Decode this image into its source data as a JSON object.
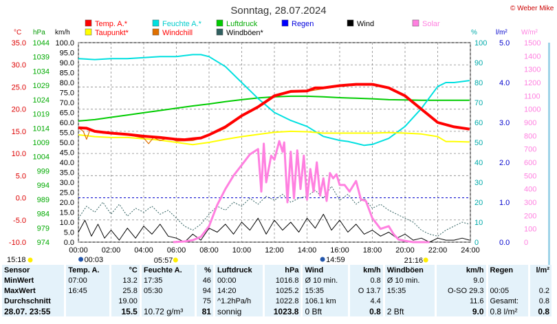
{
  "title": "Sonntag, 28.07.2024",
  "copyright": "© Weber Mike",
  "colors": {
    "temp": "#ff0000",
    "humidity": "#00e0e0",
    "pressure": "#00cc00",
    "rain": "#0000ff",
    "wind": "#000000",
    "solar": "#ff80e0",
    "dewpoint": "#ffff00",
    "windchill": "#e07000",
    "gust": "#306060",
    "pressure_axis": "#00aa00",
    "humidity_axis": "#00a0a0",
    "grid": "#888888",
    "table_bg": "#e4f2fa"
  },
  "axis_units": {
    "temp": "°C",
    "pressure": "hPa",
    "wind": "km/h",
    "humidity": "%",
    "rain": "l/m²",
    "solar": "W/m²"
  },
  "chart_data": {
    "type": "line",
    "x_ticks": [
      "00:00",
      "02:00",
      "04:00",
      "06:00",
      "08:00",
      "10:00",
      "12:00",
      "14:00",
      "16:00",
      "18:00",
      "20:00",
      "22:00",
      "24:00"
    ],
    "xlim": [
      0,
      24
    ],
    "axes": {
      "temp": {
        "ylim": [
          -10,
          35
        ],
        "ticks": [
          "35.0",
          "30.0",
          "25.0",
          "20.0",
          "15.0",
          "10.0",
          "5.0",
          "0.0",
          "-5.0",
          "-10.0"
        ]
      },
      "pressure": {
        "ylim": [
          974,
          1044
        ],
        "ticks": [
          "1044",
          "1039",
          "1034",
          "1029",
          "1024",
          "1019",
          "1014",
          "1009",
          "1004",
          "999",
          "994",
          "989",
          "984",
          "979",
          "974"
        ]
      },
      "wind": {
        "ylim": [
          0,
          100
        ],
        "ticks": [
          "100.0",
          "95.0",
          "90.0",
          "85.0",
          "80.0",
          "75.0",
          "70.0",
          "65.0",
          "60.0",
          "55.0",
          "50.0",
          "45.0",
          "40.0",
          "35.0",
          "30.0",
          "25.0",
          "20.0",
          "15.0",
          "10.0",
          "5.0",
          "0.0"
        ]
      },
      "humidity": {
        "ylim": [
          0,
          100
        ],
        "ticks": [
          "100",
          "90",
          "80",
          "70",
          "60",
          "50",
          "40",
          "30",
          "20",
          "10",
          "0"
        ]
      },
      "rain": {
        "ylim": [
          0,
          5
        ],
        "ticks": [
          "5.0",
          "4.0",
          "3.0",
          "2.0",
          "1.0",
          "0.0"
        ]
      },
      "solar": {
        "ylim": [
          0,
          1500
        ],
        "ticks": [
          "1500",
          "1400",
          "1300",
          "1200",
          "1100",
          "1000",
          "900",
          "800",
          "700",
          "600",
          "500",
          "400",
          "300",
          "200",
          "100",
          "0"
        ]
      }
    },
    "legend": [
      {
        "label": "Temp. A.*",
        "color": "#ff0000"
      },
      {
        "label": "Feuchte A.*",
        "color": "#00e0e0"
      },
      {
        "label": "Luftdruck",
        "color": "#00cc00"
      },
      {
        "label": "Regen",
        "color": "#0000ff"
      },
      {
        "label": "Wind",
        "color": "#000000"
      },
      {
        "label": "Solar",
        "color": "#ff80e0"
      },
      {
        "label": "Taupunkt*",
        "color": "#ffff00"
      },
      {
        "label": "Windchill",
        "color": "#e07000"
      },
      {
        "label": "Windböen*",
        "color": "#306060"
      }
    ],
    "series": [
      {
        "name": "Temp. A.*",
        "axis": "temp",
        "x": [
          0,
          0.5,
          1,
          1.5,
          2,
          3,
          4,
          5,
          6,
          6.5,
          7,
          7.5,
          8,
          9,
          10,
          11,
          12,
          13,
          14,
          14.5,
          15,
          16,
          17,
          18,
          19,
          20,
          21,
          22,
          23,
          23.95
        ],
        "y": [
          15.8,
          15.7,
          15,
          14.8,
          14.6,
          14.3,
          13.9,
          13.6,
          13.2,
          13.1,
          13.3,
          13.5,
          14.2,
          16,
          18.5,
          20.5,
          23,
          24,
          24.1,
          24.8,
          24.8,
          25.3,
          25.6,
          25.6,
          24.8,
          23,
          20,
          17,
          16,
          15.5
        ]
      },
      {
        "name": "Feuchte A.*",
        "axis": "humidity",
        "x": [
          0,
          1,
          2,
          3,
          4,
          5,
          6,
          7,
          7.5,
          8,
          9,
          10,
          11,
          12,
          13,
          14,
          15,
          16,
          16.5,
          17,
          17.5,
          18,
          19,
          20,
          21,
          22,
          22.5,
          23,
          23.95
        ],
        "y": [
          92,
          91.5,
          92,
          92,
          92.5,
          93,
          93,
          94,
          94,
          93,
          88,
          80,
          72,
          65,
          61,
          58,
          53,
          51,
          50.5,
          49.5,
          48.5,
          49,
          52,
          58,
          67,
          78,
          80,
          80,
          81
        ]
      },
      {
        "name": "Luftdruck",
        "axis": "pressure",
        "x": [
          0,
          1,
          2,
          3,
          4,
          5,
          6,
          7,
          8,
          9,
          10,
          11,
          12,
          13,
          14,
          15,
          16,
          17,
          18,
          19,
          20,
          21,
          22,
          23,
          23.95
        ],
        "y": [
          1016.5,
          1017,
          1017.8,
          1018.6,
          1019.4,
          1020.2,
          1021,
          1021.8,
          1022.5,
          1023.3,
          1024,
          1024.6,
          1025,
          1025.2,
          1025.2,
          1025,
          1024.7,
          1024.5,
          1024.3,
          1024,
          1023.9,
          1023.8,
          1023.8,
          1023.8,
          1023.8
        ]
      },
      {
        "name": "Taupunkt*",
        "axis": "temp",
        "x": [
          0,
          1,
          2,
          3,
          4,
          5,
          6,
          7,
          8,
          9,
          10,
          11,
          12,
          13,
          14,
          15,
          16,
          17,
          18,
          19,
          20,
          21,
          22,
          22.5,
          23,
          23.95
        ],
        "y": [
          14.2,
          13.8,
          13.6,
          13.6,
          13.3,
          13,
          12.5,
          12,
          12.5,
          13.2,
          13.8,
          14.3,
          14.8,
          15,
          14.9,
          14.6,
          14.6,
          14.6,
          14.6,
          14.7,
          14.6,
          14.4,
          13.8,
          12.7,
          12.7,
          12.6
        ]
      },
      {
        "name": "Windchill",
        "axis": "temp",
        "x": [
          0,
          0.3,
          0.5,
          0.7,
          1,
          1.5,
          2,
          3,
          4,
          4.3,
          4.6,
          5,
          5.5,
          6,
          7,
          8,
          9,
          10,
          11,
          12,
          13,
          14,
          15,
          16,
          17,
          18,
          19,
          20,
          21,
          22,
          23,
          23.95
        ],
        "y": [
          15.8,
          15,
          13.2,
          15.2,
          14.8,
          14.6,
          14.5,
          14.2,
          13.5,
          12.2,
          13.6,
          12.9,
          13.5,
          12.8,
          12.9,
          14,
          15.7,
          18.3,
          20.3,
          22.8,
          23.8,
          24,
          24.6,
          25.1,
          25.4,
          25.4,
          24.6,
          22.8,
          19.8,
          16.8,
          15.9,
          15.4
        ]
      },
      {
        "name": "Wind",
        "axis": "wind",
        "x": [
          0,
          0.4,
          0.8,
          1.2,
          1.6,
          2,
          2.5,
          3,
          3.5,
          4,
          4.5,
          5,
          5.5,
          6,
          6.5,
          7,
          7.5,
          8,
          8.5,
          9,
          9.5,
          10,
          10.5,
          11,
          11.5,
          12,
          12.5,
          13,
          13.5,
          14,
          14.5,
          15,
          15.5,
          16,
          16.5,
          17,
          17.5,
          18,
          18.5,
          19,
          19.5,
          20,
          20.5,
          21,
          21.5,
          22,
          22.5,
          23,
          23.5,
          23.95
        ],
        "y": [
          5,
          11,
          3,
          9,
          2,
          6,
          1,
          7,
          2,
          8,
          4,
          9,
          3,
          2,
          0,
          4,
          1,
          7,
          5,
          9,
          4,
          10,
          6,
          12,
          4,
          11,
          6,
          10,
          5,
          12,
          7,
          14,
          6,
          11,
          5,
          9,
          4,
          6,
          3,
          5,
          2,
          4,
          1,
          2,
          0,
          2,
          1,
          1,
          2,
          1
        ]
      },
      {
        "name": "Windböen*",
        "axis": "wind",
        "x": [
          0,
          0.5,
          1,
          1.5,
          2,
          2.5,
          3,
          3.5,
          4,
          4.5,
          5,
          5.5,
          6,
          6.5,
          7,
          7.5,
          8,
          8.5,
          9,
          9.5,
          10,
          10.5,
          11,
          11.5,
          12,
          12.5,
          13,
          13.5,
          14,
          14.5,
          15,
          15.5,
          16,
          16.5,
          17,
          17.5,
          18,
          18.5,
          19,
          19.5,
          20,
          20.5,
          21,
          21.5,
          22,
          22.5,
          23,
          23.5,
          23.95
        ],
        "y": [
          12,
          18,
          15,
          20,
          14,
          19,
          13,
          17,
          15,
          18,
          14,
          16,
          12,
          8,
          6,
          9,
          14,
          18,
          16,
          20,
          18,
          22,
          19,
          23,
          21,
          24,
          20,
          22,
          23,
          26,
          22,
          28,
          21,
          24,
          19,
          22,
          17,
          19,
          16,
          14,
          12,
          10,
          6,
          4,
          3,
          6,
          8,
          10,
          9
        ]
      },
      {
        "name": "Solar",
        "axis": "solar",
        "x": [
          5.8,
          6.5,
          7,
          7.5,
          8,
          8.5,
          9,
          9.5,
          10,
          10.5,
          11,
          11.2,
          11.35,
          11.5,
          11.8,
          12,
          12.3,
          12.5,
          12.6,
          12.8,
          13,
          13.2,
          13.4,
          13.6,
          13.8,
          14,
          14.2,
          14.4,
          14.6,
          14.8,
          15,
          15.2,
          15.4,
          15.6,
          15.8,
          16,
          16.3,
          16.6,
          17,
          17.3,
          17.6,
          18,
          18.5,
          19,
          19.3,
          19.6,
          20,
          20.5,
          21,
          21.5
        ],
        "y": [
          0,
          5,
          15,
          40,
          120,
          280,
          400,
          500,
          580,
          660,
          700,
          380,
          740,
          450,
          650,
          620,
          760,
          680,
          750,
          300,
          680,
          330,
          690,
          400,
          650,
          320,
          550,
          380,
          600,
          350,
          480,
          310,
          520,
          480,
          510,
          430,
          430,
          380,
          460,
          320,
          310,
          180,
          100,
          120,
          60,
          20,
          10,
          0,
          0,
          0
        ]
      },
      {
        "name": "Regen",
        "axis": "rain",
        "x": [],
        "y": []
      }
    ]
  },
  "sun": {
    "sunrise_label": "05:57",
    "sunset_label": "21:16",
    "left_label": "15:18",
    "moon1_label": "00:03",
    "moon2_label": "14:59"
  },
  "table": {
    "headers": [
      "Sensor",
      "Temp. A.",
      "°C",
      "Feuchte A.",
      "%",
      "Luftdruck",
      "hPa",
      "Wind",
      "km/h",
      "Windböen",
      "km/h",
      "Regen",
      "l/m²"
    ],
    "rows": [
      [
        "MinWert",
        "07:00",
        "13.2",
        "17:35",
        "46",
        "00:00",
        "1016.8",
        "Ø 10 min.",
        "0.8",
        "Ø 10 min.",
        "9.0",
        "",
        ""
      ],
      [
        "MaxWert",
        "16:45",
        "25.8",
        "05:30",
        "94",
        "14:20",
        "1025.2",
        "15:35",
        "O 13.7",
        "15:35",
        "O-SO 29.3",
        "00:05",
        "0.2"
      ],
      [
        "Durchschnitt",
        "",
        "19.00",
        "",
        "75",
        "^1.2hPa/h",
        "1022.8",
        "106.1 km",
        "4.4",
        "",
        "11.6",
        "Gesamt:",
        "0.8"
      ],
      [
        "28.07. 23:55",
        "",
        "15.5",
        "10.72 g/m³",
        "81",
        "sonnig",
        "1023.8",
        "0 Bft",
        "0.8",
        "2 Bft",
        "9.0",
        "0.8 l/m²",
        "0.8"
      ]
    ]
  }
}
